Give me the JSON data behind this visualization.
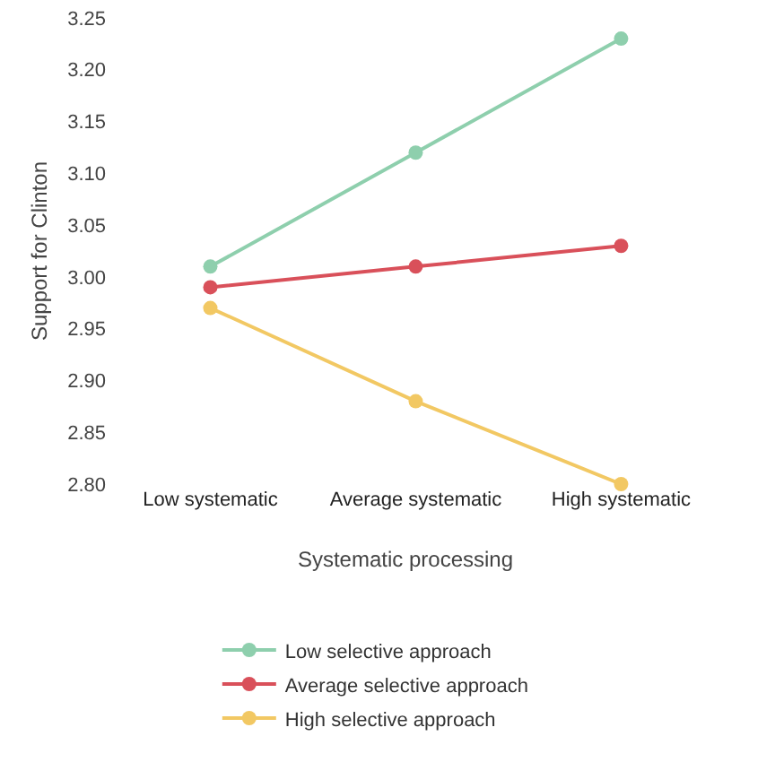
{
  "chart_data": {
    "type": "line",
    "xlabel": "Systematic processing",
    "ylabel": "Support for Clinton",
    "categories": [
      "Low systematic",
      "Average systematic",
      "High systematic"
    ],
    "series": [
      {
        "name": "Low selective approach",
        "color": "#8ecfad",
        "values": [
          3.01,
          3.12,
          3.23
        ]
      },
      {
        "name": "Average selective approach",
        "color": "#d9505a",
        "values": [
          2.99,
          3.01,
          3.03
        ]
      },
      {
        "name": "High selective approach",
        "color": "#f2c863",
        "values": [
          2.97,
          2.88,
          2.8
        ]
      }
    ],
    "ylim": [
      2.8,
      3.25
    ],
    "yticks": [
      {
        "value": 2.8,
        "label": "2.80"
      },
      {
        "value": 2.85,
        "label": "2.85"
      },
      {
        "value": 2.9,
        "label": "2.90"
      },
      {
        "value": 2.95,
        "label": "2.95"
      },
      {
        "value": 3.0,
        "label": "3.00"
      },
      {
        "value": 3.05,
        "label": "3.05"
      },
      {
        "value": 3.1,
        "label": "3.10"
      },
      {
        "value": 3.15,
        "label": "3.15"
      },
      {
        "value": 3.2,
        "label": "3.20"
      },
      {
        "value": 3.25,
        "label": "3.25"
      }
    ],
    "grid": false,
    "legend": "bottom",
    "marker": "circle",
    "line_style": "solid"
  }
}
